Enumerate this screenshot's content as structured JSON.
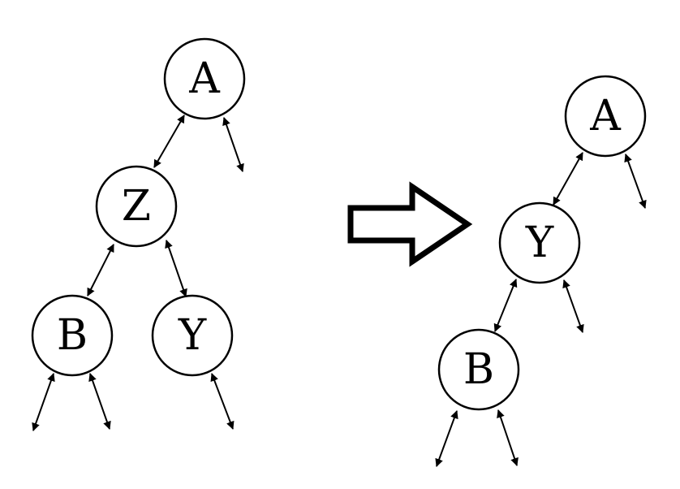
{
  "left_tree": {
    "nodes": [
      {
        "id": "A",
        "label": "A"
      },
      {
        "id": "Z",
        "label": "Z"
      },
      {
        "id": "B",
        "label": "B"
      },
      {
        "id": "Y",
        "label": "Y"
      }
    ]
  },
  "right_tree": {
    "nodes": [
      {
        "id": "A",
        "label": "A"
      },
      {
        "id": "Y",
        "label": "Y"
      },
      {
        "id": "B",
        "label": "B"
      }
    ]
  },
  "colors": {
    "stroke": "#000000",
    "fill": "#ffffff"
  }
}
